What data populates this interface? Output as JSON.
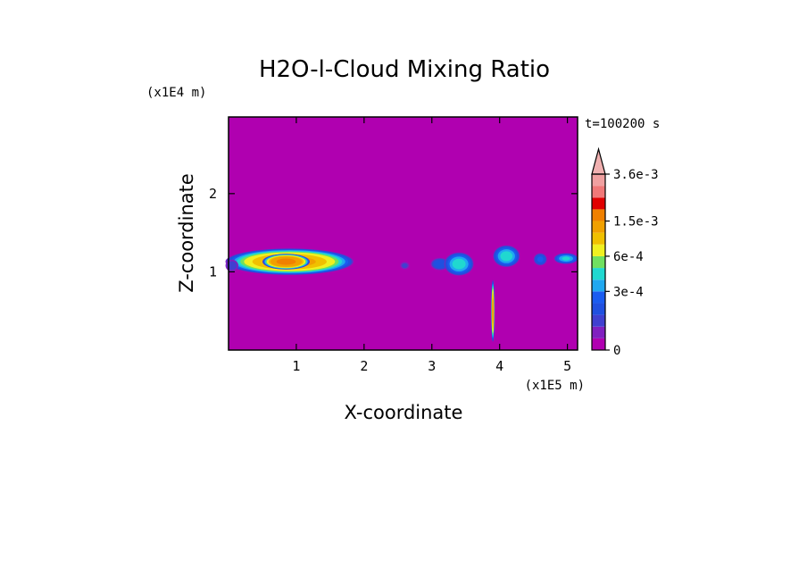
{
  "chart_data": {
    "type": "heatmap",
    "title": "H2O-l-Cloud Mixing Ratio",
    "xlabel": "X-coordinate",
    "ylabel": "Z-coordinate",
    "x_unit": "(x1E5 m)",
    "y_unit": "(x1E4 m)",
    "time_label": "t=100200 s",
    "xlim": [
      0,
      5.15
    ],
    "ylim": [
      0,
      2.98
    ],
    "x_ticks": [
      1,
      2,
      3,
      4,
      5
    ],
    "y_ticks": [
      1,
      2
    ],
    "background_color": "#b000b0",
    "colorbar": {
      "levels": [
        0,
        1e-05,
        5e-05,
        0.0001,
        0.0002,
        0.0003,
        0.0004,
        0.0005,
        0.0006,
        0.0008,
        0.001,
        0.0015,
        0.002,
        0.0025,
        0.003,
        0.0036
      ],
      "colors": [
        "#b000b0",
        "#8020c0",
        "#4040d0",
        "#2050e0",
        "#1a5cf0",
        "#20a8f0",
        "#20d8d0",
        "#70e060",
        "#f0f020",
        "#f0c000",
        "#f0a000",
        "#f08000",
        "#e00000",
        "#f07878",
        "#f0a0a0"
      ],
      "tick_labels": [
        {
          "value": 0,
          "label": "0"
        },
        {
          "value": 0.0003,
          "label": "3e-4"
        },
        {
          "value": 0.0006,
          "label": "6e-4"
        },
        {
          "value": 0.0015,
          "label": "1.5e-3"
        },
        {
          "value": 0.0036,
          "label": "3.6e-3"
        }
      ],
      "extend": "max",
      "extend_color": "#f0b0b0"
    },
    "features": [
      {
        "type": "blob",
        "x": 0.9,
        "z": 1.13,
        "dx": 0.95,
        "dz": 0.17,
        "peak": 0.0012
      },
      {
        "type": "blob",
        "x": 0.85,
        "z": 1.13,
        "dx": 0.35,
        "dz": 0.1,
        "peak": 0.0018
      },
      {
        "type": "blob",
        "x": 0.05,
        "z": 1.08,
        "dx": 0.1,
        "dz": 0.08,
        "peak": 0.0001
      },
      {
        "type": "blob",
        "x": 2.6,
        "z": 1.08,
        "dx": 0.07,
        "dz": 0.05,
        "peak": 8e-05
      },
      {
        "type": "blob",
        "x": 3.12,
        "z": 1.1,
        "dx": 0.14,
        "dz": 0.08,
        "peak": 0.0002
      },
      {
        "type": "blob",
        "x": 3.4,
        "z": 1.1,
        "dx": 0.22,
        "dz": 0.15,
        "peak": 0.0005
      },
      {
        "type": "blob",
        "x": 4.1,
        "z": 1.2,
        "dx": 0.2,
        "dz": 0.14,
        "peak": 0.0005
      },
      {
        "type": "blob",
        "x": 4.6,
        "z": 1.16,
        "dx": 0.1,
        "dz": 0.08,
        "peak": 0.00025
      },
      {
        "type": "blob",
        "x": 4.98,
        "z": 1.17,
        "dx": 0.18,
        "dz": 0.07,
        "peak": 0.00045
      },
      {
        "type": "blob",
        "x": 3.9,
        "z": 0.5,
        "dx": 0.025,
        "dz": 0.4,
        "peak": 0.0012
      }
    ]
  }
}
